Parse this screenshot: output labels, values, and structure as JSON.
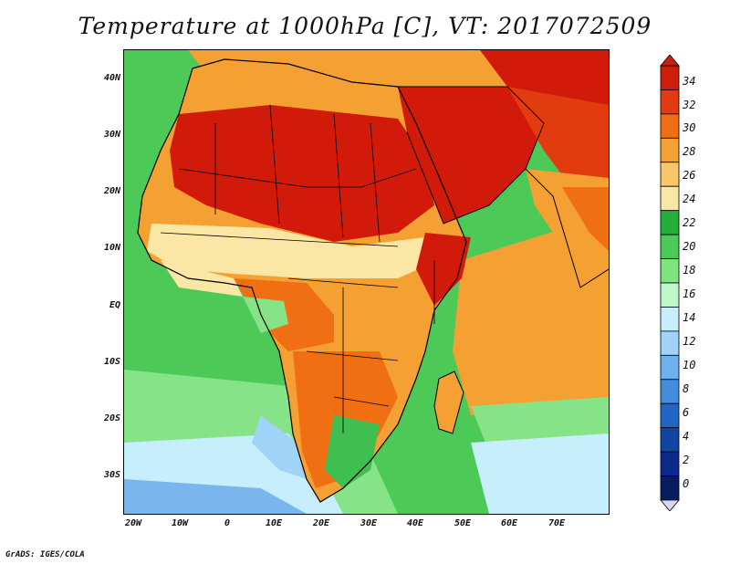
{
  "title": "Temperature at 1000hPa [C], VT: 2017072509",
  "footer": "GrADS: IGES/COLA",
  "y_axis_labels": [
    "40N",
    "30N",
    "20N",
    "10N",
    "EQ",
    "10S",
    "20S",
    "30S"
  ],
  "x_axis_labels": [
    "20W",
    "10W",
    "0",
    "10E",
    "20E",
    "30E",
    "40E",
    "50E",
    "60E",
    "70E"
  ],
  "colorbar": {
    "labels": [
      "34",
      "32",
      "30",
      "28",
      "26",
      "24",
      "22",
      "20",
      "18",
      "16",
      "14",
      "12",
      "10",
      "8",
      "6",
      "4",
      "2",
      "0"
    ],
    "colors": [
      "#cf1f0b",
      "#e23b10",
      "#f06f12",
      "#f5a033",
      "#f8c76a",
      "#fbe7a5",
      "#22b03a",
      "#4cc956",
      "#7fe47e",
      "#bff7c8",
      "#c7eefc",
      "#9fd3f7",
      "#6fb0ee",
      "#438ddf",
      "#2066c6",
      "#0f46a4",
      "#0b2a8c",
      "#081d5f"
    ]
  },
  "map_colors": {
    "hot": "#d21a0a",
    "warm": "#f06f12",
    "mild": "#f5a033",
    "light": "#fbe7a5",
    "green": "#3fbf50",
    "lightgreen": "#87e388",
    "cyan": "#c7eefc",
    "blue": "#7ab5ee"
  }
}
